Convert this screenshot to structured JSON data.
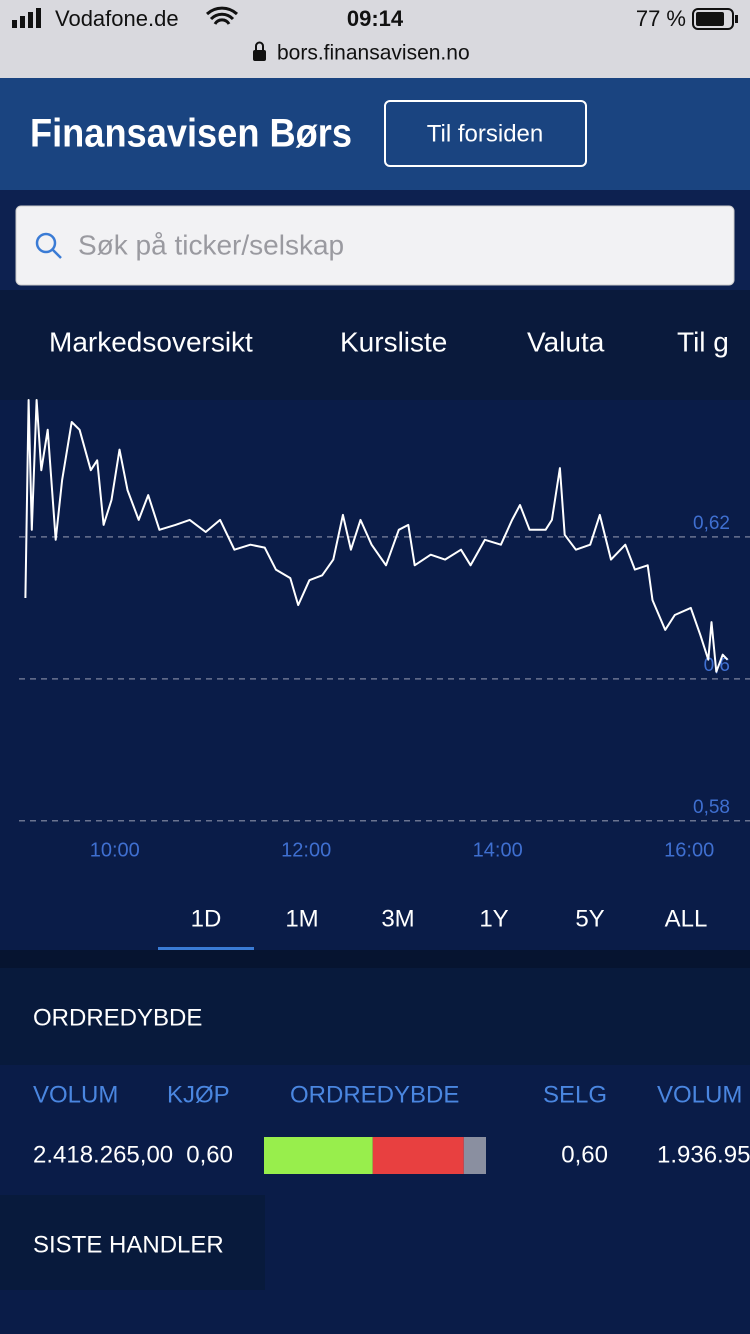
{
  "status_bar": {
    "carrier": "Vodafone.de",
    "time": "09:14",
    "battery": "77 %",
    "url": "bors.finansavisen.no"
  },
  "header": {
    "brand": "Finansavisen Børs",
    "button": "Til forsiden"
  },
  "search": {
    "placeholder": "Søk på ticker/selskap"
  },
  "nav": [
    "Markedsoversikt",
    "Kursliste",
    "Valuta",
    "Til g"
  ],
  "chart_data": {
    "type": "line",
    "color": "#ffffff",
    "grid": true,
    "x": [
      544,
      546,
      548,
      551,
      554,
      558,
      563,
      567,
      573,
      578,
      585,
      589,
      593,
      598,
      603,
      608,
      615,
      621,
      628,
      638,
      647,
      657,
      666,
      675,
      685,
      694,
      701,
      710,
      715,
      722,
      730,
      737,
      743,
      748,
      754,
      761,
      770,
      778,
      784,
      788,
      798,
      807,
      817,
      823,
      832,
      842,
      849,
      854,
      860,
      870,
      874,
      879,
      882,
      889,
      898,
      904,
      911,
      920,
      926,
      934,
      937,
      945,
      951,
      961,
      967,
      972,
      974,
      977,
      981,
      984
    ],
    "values": [
      0.6114,
      0.6393,
      0.621,
      0.6393,
      0.6294,
      0.6351,
      0.6196,
      0.628,
      0.6362,
      0.6351,
      0.6294,
      0.6308,
      0.6217,
      0.6252,
      0.6323,
      0.6266,
      0.6224,
      0.6259,
      0.621,
      0.6217,
      0.6224,
      0.6207,
      0.6224,
      0.6182,
      0.6189,
      0.6185,
      0.6154,
      0.6142,
      0.6104,
      0.6139,
      0.6146,
      0.6168,
      0.6231,
      0.6182,
      0.6224,
      0.6189,
      0.616,
      0.621,
      0.6217,
      0.616,
      0.6175,
      0.6168,
      0.6182,
      0.616,
      0.6196,
      0.6189,
      0.6224,
      0.6245,
      0.621,
      0.621,
      0.6224,
      0.6297,
      0.6203,
      0.6182,
      0.6189,
      0.6231,
      0.6168,
      0.6189,
      0.6154,
      0.616,
      0.6111,
      0.6069,
      0.609,
      0.61,
      0.6062,
      0.6027,
      0.608,
      0.601,
      0.6034,
      0.6027
    ],
    "xlim": [
      540,
      1000
    ],
    "ylim": [
      0.578,
      0.64
    ],
    "xticks": [
      {
        "value": 600,
        "label": "10:00"
      },
      {
        "value": 720,
        "label": "12:00"
      },
      {
        "value": 840,
        "label": "14:00"
      },
      {
        "value": 960,
        "label": "16:00"
      }
    ],
    "yticks": [
      {
        "value": 0.58,
        "label": "0,58"
      },
      {
        "value": 0.6,
        "label": "0,6"
      },
      {
        "value": 0.62,
        "label": "0,62"
      }
    ]
  },
  "ranges": {
    "items": [
      "1D",
      "1M",
      "3M",
      "1Y",
      "5Y",
      "ALL"
    ],
    "active": 0
  },
  "order_depth": {
    "title": "ORDREDYBDE",
    "headers": [
      "VOLUM",
      "KJØP",
      "ORDREDYBDE",
      "SELG",
      "VOLUM"
    ],
    "row": {
      "buy_volume": "2.418.265,00",
      "buy": "0,60",
      "sell": "0,60",
      "sell_volume": "1.936.95"
    },
    "bar": {
      "buy": 49,
      "sell": 41,
      "rest": 10
    }
  },
  "trades": {
    "title": "SISTE HANDLER"
  }
}
